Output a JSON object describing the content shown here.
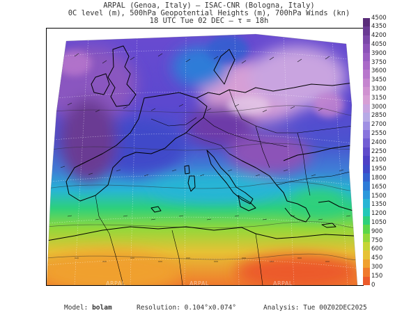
{
  "title_lines": [
    "ARPAL (Genoa, Italy)  —  ISAC-CNR (Bologna, Italy)",
    "0C level (m), 500hPa Geopotential Heights (m), 700hPa Winds (kn)",
    "18 UTC Tue 02 DEC  —  τ = 18h"
  ],
  "colorbar": {
    "labels": [
      "4500",
      "4350",
      "4200",
      "4050",
      "3900",
      "3750",
      "3600",
      "3450",
      "3300",
      "3150",
      "3000",
      "2850",
      "2700",
      "2550",
      "2400",
      "2250",
      "2100",
      "1950",
      "1800",
      "1650",
      "1500",
      "1350",
      "1200",
      "1050",
      "900",
      "750",
      "600",
      "450",
      "300",
      "150",
      "0"
    ],
    "colors": [
      "#5a2d7a",
      "#6a3a93",
      "#7b47a8",
      "#8c52b8",
      "#9b5ec2",
      "#aa6ac8",
      "#b877cc",
      "#c585cf",
      "#d092d1",
      "#d79fd5",
      "#c9a4e0",
      "#b7aae6",
      "#9f8fe3",
      "#8874dd",
      "#725ed4",
      "#5f4bcb",
      "#4d40c6",
      "#3f48c9",
      "#3360d0",
      "#2d7bd8",
      "#2a98dc",
      "#27b5d5",
      "#22c8b8",
      "#2dd07c",
      "#5bd64a",
      "#93d83a",
      "#c5d535",
      "#e6c235",
      "#f0a02f",
      "#f07a2c",
      "#ec5a2a"
    ]
  },
  "watermark_text": "ARPAL",
  "footer": {
    "model_label": "Model:",
    "model_value": "bolam",
    "resolution_label": "Resolution:",
    "resolution_value": "0.104°x0.074°",
    "analysis_label": "Analysis:",
    "analysis_value": "Tue 00Z02DEC2025"
  }
}
